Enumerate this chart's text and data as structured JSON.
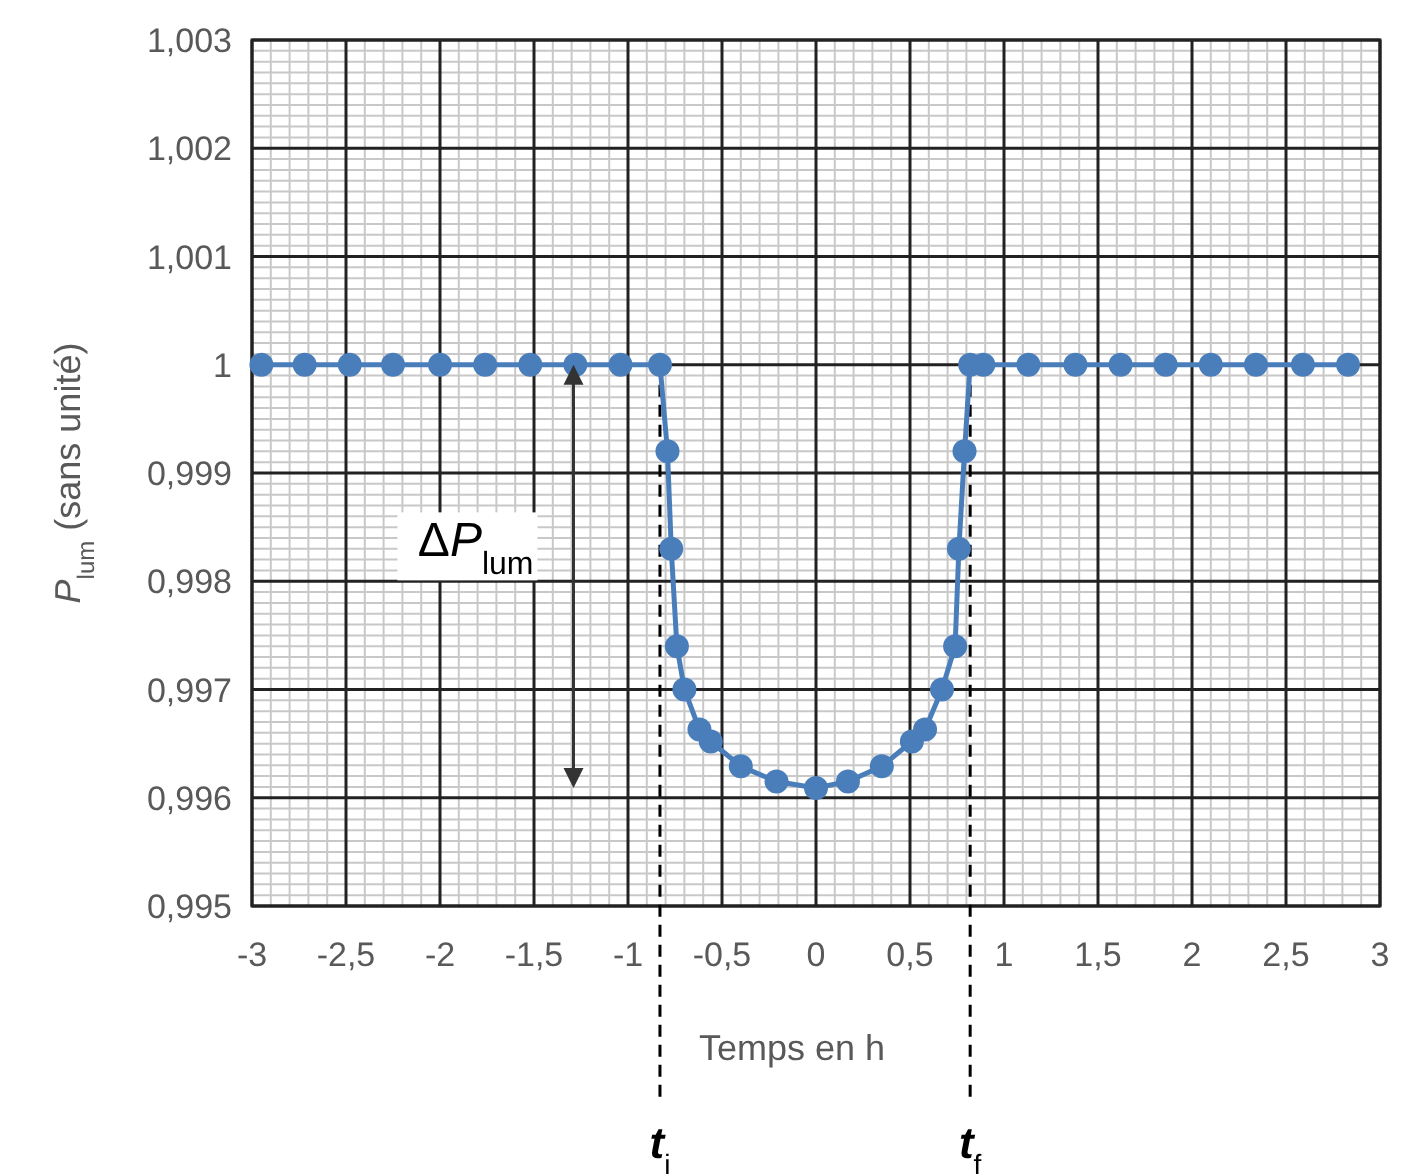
{
  "chart_data": {
    "type": "line",
    "xlabel": "Temps en h",
    "ylabel": "P$_{lum}$ (sans unité)",
    "xlim": [
      -3,
      3
    ],
    "ylim": [
      0.995,
      1.003
    ],
    "xticks": [
      -3,
      {
        "value": -2.5,
        "label": "-2,5"
      },
      -2,
      {
        "value": -1.5,
        "label": "-1,5"
      },
      -1,
      {
        "value": -0.5,
        "label": "-0,5"
      },
      0,
      {
        "value": 0.5,
        "label": "0,5"
      },
      1,
      {
        "value": 1.5,
        "label": "1,5"
      },
      2,
      {
        "value": 2.5,
        "label": "2,5"
      },
      3
    ],
    "yticks": [
      {
        "value": 0.995,
        "label": "0,995"
      },
      {
        "value": 0.996,
        "label": "0,996"
      },
      {
        "value": 0.997,
        "label": "0,997"
      },
      {
        "value": 0.998,
        "label": "0,998"
      },
      {
        "value": 0.999,
        "label": "0,999"
      },
      1,
      {
        "value": 1.001,
        "label": "1,001"
      },
      {
        "value": 1.002,
        "label": "1,002"
      },
      {
        "value": 1.003,
        "label": "1,003"
      }
    ],
    "grid": true,
    "marker": "circle",
    "line_style": "solid",
    "series": [
      {
        "color": "#4a7ebb",
        "x": [
          -2.95,
          -2.72,
          -2.48,
          -2.25,
          -2.0,
          -1.76,
          -1.52,
          -1.28,
          -1.04,
          -0.83,
          -0.79,
          -0.77,
          -0.74,
          -0.7,
          -0.62,
          -0.56,
          -0.4,
          -0.21,
          0,
          0.17,
          0.35,
          0.51,
          0.58,
          0.67,
          0.74,
          0.76,
          0.79,
          0.82,
          0.89,
          1.13,
          1.38,
          1.62,
          1.86,
          2.1,
          2.34,
          2.59,
          2.83
        ],
        "values": [
          1,
          1,
          1,
          1,
          1,
          1,
          1,
          1,
          1,
          1,
          0.9992,
          0.9983,
          0.9974,
          0.997,
          0.99663,
          0.99652,
          0.99629,
          0.99615,
          0.99609,
          0.99615,
          0.99629,
          0.99652,
          0.99663,
          0.997,
          0.9974,
          0.9983,
          0.9992,
          1,
          1,
          1,
          1,
          1,
          1,
          1,
          1,
          1,
          1
        ]
      }
    ],
    "ref_lines": [
      {
        "axis": "x",
        "value": -0.83,
        "label": "t$_{i}$",
        "color": "#000000",
        "line_style": "dashed"
      },
      {
        "axis": "x",
        "value": 0.82,
        "label": "t$_{f}$",
        "color": "#000000",
        "line_style": "dashed"
      }
    ],
    "annotations": [
      "ΔP$_{lum}$"
    ]
  }
}
